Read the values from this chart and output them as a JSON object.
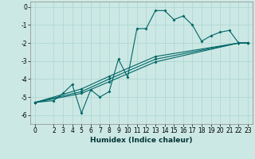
{
  "xlabel": "Humidex (Indice chaleur)",
  "ylabel": "",
  "bg_color": "#cce8e4",
  "grid_color": "#aad4d0",
  "line_color": "#006666",
  "xlim": [
    -0.5,
    23.5
  ],
  "ylim": [
    -6.5,
    0.3
  ],
  "yticks": [
    0,
    -1,
    -2,
    -3,
    -4,
    -5,
    -6
  ],
  "xticks": [
    0,
    2,
    3,
    4,
    5,
    6,
    7,
    8,
    9,
    10,
    11,
    12,
    13,
    14,
    15,
    16,
    17,
    18,
    19,
    20,
    21,
    22,
    23
  ],
  "lines": [
    {
      "x": [
        0,
        2,
        3,
        4,
        5,
        6,
        7,
        8,
        9,
        10,
        11,
        12,
        13,
        14,
        15,
        16,
        17,
        18,
        19,
        20,
        21,
        22,
        23
      ],
      "y": [
        -5.3,
        -5.2,
        -4.8,
        -4.3,
        -5.9,
        -4.6,
        -5.0,
        -4.7,
        -2.9,
        -3.9,
        -1.2,
        -1.2,
        -0.2,
        -0.2,
        -0.7,
        -0.5,
        -1.0,
        -1.9,
        -1.6,
        -1.4,
        -1.3,
        -2.0,
        -2.0
      ]
    },
    {
      "x": [
        0,
        5,
        8,
        13,
        22,
        23
      ],
      "y": [
        -5.3,
        -4.55,
        -3.85,
        -2.75,
        -2.0,
        -2.0
      ]
    },
    {
      "x": [
        0,
        5,
        8,
        13,
        22,
        23
      ],
      "y": [
        -5.3,
        -4.7,
        -4.0,
        -2.9,
        -2.0,
        -2.0
      ]
    },
    {
      "x": [
        0,
        5,
        8,
        13,
        22,
        23
      ],
      "y": [
        -5.3,
        -4.8,
        -4.15,
        -3.05,
        -2.0,
        -2.0
      ]
    }
  ]
}
